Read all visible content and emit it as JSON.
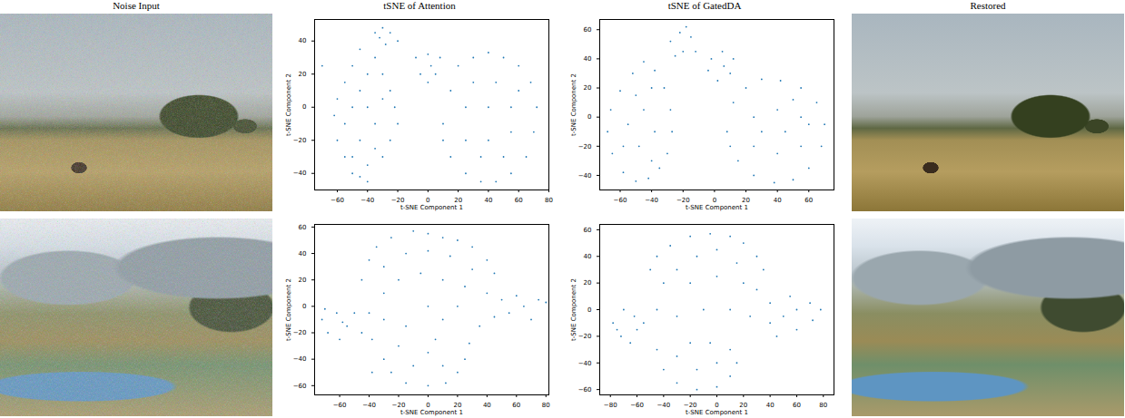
{
  "columns": [
    "Noise Input",
    "tSNE of Attention",
    "tSNE of GatedDA",
    "Restored"
  ],
  "chart_data": [
    {
      "type": "scatter",
      "xlabel": "t-SNE Component 1",
      "ylabel": "t-SNE Component 2",
      "color": "#1f77b4",
      "marker": "point",
      "xlim": [
        -75,
        80
      ],
      "ylim": [
        -50,
        53
      ],
      "xticks": [
        -60,
        -40,
        -20,
        0,
        20,
        40,
        60,
        80
      ],
      "yticks": [
        -40,
        -20,
        0,
        20,
        40
      ],
      "points": [
        [
          -60,
          -20
        ],
        [
          -55,
          -30
        ],
        [
          -50,
          -40
        ],
        [
          -45,
          -42
        ],
        [
          -40,
          -35
        ],
        [
          -35,
          -25
        ],
        [
          -30,
          -30
        ],
        [
          -25,
          -20
        ],
        [
          -20,
          -10
        ],
        [
          -22,
          0
        ],
        [
          -25,
          10
        ],
        [
          -30,
          20
        ],
        [
          -35,
          30
        ],
        [
          -45,
          35
        ],
        [
          -50,
          25
        ],
        [
          -55,
          15
        ],
        [
          -60,
          5
        ],
        [
          -62,
          -5
        ],
        [
          -55,
          -10
        ],
        [
          -50,
          0
        ],
        [
          -45,
          10
        ],
        [
          -40,
          20
        ],
        [
          -40,
          0
        ],
        [
          -35,
          -10
        ],
        [
          -45,
          -20
        ],
        [
          -30,
          5
        ],
        [
          -50,
          -30
        ],
        [
          -40,
          -45
        ],
        [
          -35,
          45
        ],
        [
          -30,
          48
        ],
        [
          -25,
          45
        ],
        [
          -20,
          40
        ],
        [
          -28,
          38
        ],
        [
          -32,
          42
        ],
        [
          -8,
          30
        ],
        [
          0,
          32
        ],
        [
          8,
          30
        ],
        [
          5,
          20
        ],
        [
          -5,
          20
        ],
        [
          0,
          15
        ],
        [
          2,
          25
        ],
        [
          10,
          -10
        ],
        [
          15,
          10
        ],
        [
          20,
          25
        ],
        [
          30,
          30
        ],
        [
          40,
          33
        ],
        [
          50,
          30
        ],
        [
          60,
          25
        ],
        [
          68,
          15
        ],
        [
          72,
          0
        ],
        [
          70,
          -15
        ],
        [
          65,
          -30
        ],
        [
          55,
          -40
        ],
        [
          45,
          -45
        ],
        [
          35,
          -45
        ],
        [
          25,
          -40
        ],
        [
          15,
          -30
        ],
        [
          10,
          -20
        ],
        [
          25,
          -20
        ],
        [
          40,
          -20
        ],
        [
          55,
          -15
        ],
        [
          25,
          0
        ],
        [
          40,
          0
        ],
        [
          55,
          0
        ],
        [
          30,
          15
        ],
        [
          45,
          15
        ],
        [
          60,
          10
        ],
        [
          35,
          -30
        ],
        [
          50,
          -30
        ],
        [
          -70,
          25
        ]
      ]
    },
    {
      "type": "scatter",
      "xlabel": "t-SNE Component 1",
      "ylabel": "t-SNE Component 2",
      "color": "#1f77b4",
      "marker": "point",
      "xlim": [
        -73,
        76
      ],
      "ylim": [
        -50,
        67
      ],
      "xticks": [
        -60,
        -40,
        -20,
        0,
        20,
        40,
        60
      ],
      "yticks": [
        -40,
        -20,
        0,
        20,
        40,
        60
      ],
      "points": [
        [
          -68,
          -10
        ],
        [
          -65,
          -25
        ],
        [
          -58,
          -38
        ],
        [
          -50,
          -44
        ],
        [
          -42,
          -42
        ],
        [
          -35,
          -35
        ],
        [
          -30,
          -25
        ],
        [
          -27,
          -10
        ],
        [
          -28,
          5
        ],
        [
          -32,
          20
        ],
        [
          -38,
          32
        ],
        [
          -45,
          38
        ],
        [
          -52,
          30
        ],
        [
          -60,
          18
        ],
        [
          -66,
          5
        ],
        [
          -55,
          -5
        ],
        [
          -48,
          -20
        ],
        [
          -45,
          5
        ],
        [
          -40,
          20
        ],
        [
          -38,
          -10
        ],
        [
          -50,
          15
        ],
        [
          -58,
          -20
        ],
        [
          -40,
          -30
        ],
        [
          -28,
          52
        ],
        [
          -22,
          58
        ],
        [
          -15,
          55
        ],
        [
          -12,
          45
        ],
        [
          -20,
          45
        ],
        [
          -25,
          42
        ],
        [
          -18,
          62
        ],
        [
          -2,
          40
        ],
        [
          5,
          45
        ],
        [
          12,
          40
        ],
        [
          10,
          30
        ],
        [
          2,
          25
        ],
        [
          -4,
          32
        ],
        [
          6,
          35
        ],
        [
          8,
          -10
        ],
        [
          12,
          10
        ],
        [
          20,
          20
        ],
        [
          30,
          26
        ],
        [
          42,
          25
        ],
        [
          55,
          20
        ],
        [
          65,
          10
        ],
        [
          70,
          -5
        ],
        [
          68,
          -20
        ],
        [
          60,
          -35
        ],
        [
          50,
          -43
        ],
        [
          38,
          -45
        ],
        [
          25,
          -40
        ],
        [
          15,
          -30
        ],
        [
          10,
          -20
        ],
        [
          25,
          -20
        ],
        [
          40,
          -25
        ],
        [
          55,
          -20
        ],
        [
          25,
          0
        ],
        [
          40,
          5
        ],
        [
          55,
          0
        ],
        [
          30,
          -10
        ],
        [
          45,
          -10
        ],
        [
          60,
          -5
        ],
        [
          50,
          12
        ]
      ]
    },
    {
      "type": "scatter",
      "xlabel": "t-SNE Component 1",
      "ylabel": "t-SNE Component 2",
      "color": "#1f77b4",
      "marker": "point",
      "xlim": [
        -77,
        82
      ],
      "ylim": [
        -67,
        62
      ],
      "xticks": [
        -60,
        -40,
        -20,
        0,
        20,
        40,
        60,
        80
      ],
      "yticks": [
        -60,
        -40,
        -20,
        0,
        20,
        40,
        60
      ],
      "points": [
        [
          -45,
          20
        ],
        [
          -40,
          35
        ],
        [
          -35,
          45
        ],
        [
          -25,
          52
        ],
        [
          -10,
          57
        ],
        [
          0,
          55
        ],
        [
          10,
          52
        ],
        [
          20,
          50
        ],
        [
          30,
          45
        ],
        [
          40,
          35
        ],
        [
          45,
          25
        ],
        [
          -30,
          30
        ],
        [
          -15,
          40
        ],
        [
          0,
          42
        ],
        [
          15,
          38
        ],
        [
          30,
          28
        ],
        [
          -20,
          20
        ],
        [
          -5,
          25
        ],
        [
          10,
          20
        ],
        [
          25,
          15
        ],
        [
          -30,
          10
        ],
        [
          40,
          10
        ],
        [
          -72,
          -10
        ],
        [
          -68,
          -20
        ],
        [
          -60,
          -25
        ],
        [
          -55,
          -15
        ],
        [
          -62,
          -5
        ],
        [
          -50,
          -5
        ],
        [
          -70,
          -2
        ],
        [
          -58,
          -12
        ],
        [
          -38,
          -25
        ],
        [
          -30,
          -40
        ],
        [
          -25,
          -50
        ],
        [
          -15,
          -58
        ],
        [
          0,
          -60
        ],
        [
          12,
          -58
        ],
        [
          20,
          -50
        ],
        [
          25,
          -40
        ],
        [
          28,
          -28
        ],
        [
          -20,
          -30
        ],
        [
          0,
          -35
        ],
        [
          10,
          -45
        ],
        [
          -10,
          -45
        ],
        [
          5,
          -25
        ],
        [
          -15,
          -15
        ],
        [
          10,
          -10
        ],
        [
          35,
          -15
        ],
        [
          45,
          -8
        ],
        [
          55,
          -5
        ],
        [
          65,
          0
        ],
        [
          75,
          5
        ],
        [
          80,
          3
        ],
        [
          70,
          -10
        ],
        [
          60,
          8
        ],
        [
          50,
          5
        ],
        [
          -40,
          -5
        ],
        [
          -30,
          -10
        ],
        [
          0,
          0
        ],
        [
          20,
          0
        ],
        [
          -45,
          -20
        ],
        [
          -38,
          -50
        ]
      ]
    },
    {
      "type": "scatter",
      "xlabel": "t-SNE Component 1",
      "ylabel": "t-SNE Component 2",
      "color": "#1f77b4",
      "marker": "point",
      "xlim": [
        -88,
        88
      ],
      "ylim": [
        -64,
        64
      ],
      "xticks": [
        -80,
        -60,
        -40,
        -20,
        0,
        20,
        40,
        60,
        80
      ],
      "yticks": [
        -60,
        -40,
        -20,
        0,
        20,
        40,
        60
      ],
      "points": [
        [
          -50,
          30
        ],
        [
          -45,
          40
        ],
        [
          -35,
          48
        ],
        [
          -20,
          55
        ],
        [
          -5,
          57
        ],
        [
          10,
          55
        ],
        [
          20,
          50
        ],
        [
          30,
          40
        ],
        [
          35,
          30
        ],
        [
          -30,
          30
        ],
        [
          -15,
          40
        ],
        [
          0,
          45
        ],
        [
          15,
          35
        ],
        [
          -40,
          20
        ],
        [
          -20,
          20
        ],
        [
          0,
          25
        ],
        [
          20,
          20
        ],
        [
          30,
          15
        ],
        [
          -78,
          -10
        ],
        [
          -72,
          -20
        ],
        [
          -65,
          -25
        ],
        [
          -60,
          -15
        ],
        [
          -70,
          0
        ],
        [
          -62,
          -5
        ],
        [
          -55,
          -10
        ],
        [
          -75,
          -15
        ],
        [
          -45,
          -30
        ],
        [
          -40,
          -45
        ],
        [
          -30,
          -55
        ],
        [
          -15,
          -60
        ],
        [
          0,
          -58
        ],
        [
          10,
          -50
        ],
        [
          15,
          -40
        ],
        [
          -30,
          -35
        ],
        [
          -15,
          -45
        ],
        [
          0,
          -40
        ],
        [
          -20,
          -25
        ],
        [
          -5,
          -25
        ],
        [
          10,
          -30
        ],
        [
          40,
          -10
        ],
        [
          50,
          -5
        ],
        [
          60,
          0
        ],
        [
          70,
          5
        ],
        [
          78,
          0
        ],
        [
          72,
          -8
        ],
        [
          60,
          -15
        ],
        [
          45,
          -20
        ],
        [
          55,
          10
        ],
        [
          40,
          5
        ],
        [
          -45,
          0
        ],
        [
          -30,
          -5
        ],
        [
          -10,
          0
        ],
        [
          10,
          0
        ],
        [
          25,
          -5
        ]
      ]
    }
  ]
}
